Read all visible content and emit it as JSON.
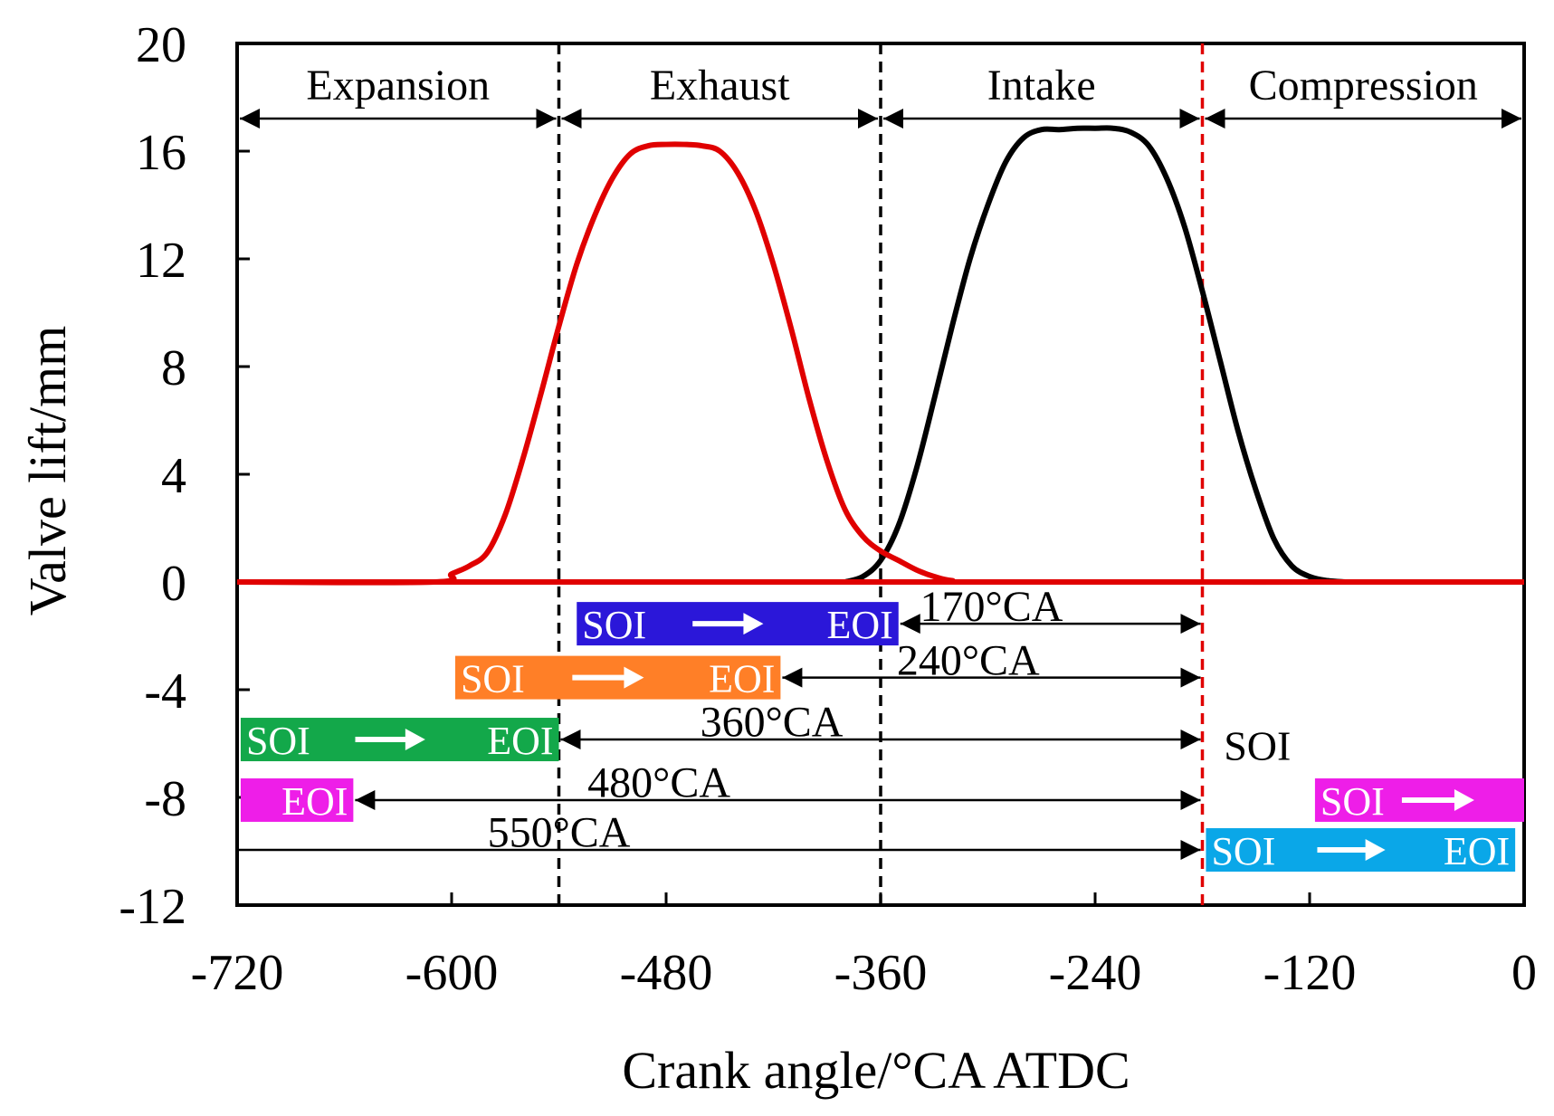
{
  "chart_data": {
    "type": "line",
    "xlabel": "Crank angle/°CA ATDC",
    "ylabel": "Valve lift/mm",
    "xlim": [
      -720,
      0
    ],
    "ylim": [
      -12,
      20
    ],
    "xticks": [
      -720,
      -600,
      -480,
      -360,
      -240,
      -120,
      0
    ],
    "yticks": [
      20,
      16,
      12,
      8,
      4,
      0,
      -4,
      -8,
      -12
    ],
    "series": [
      {
        "name": "Exhaust valve lift",
        "color": "#e00000",
        "x": [
          -720,
          -610,
          -600,
          -590,
          -580,
          -570,
          -560,
          -550,
          -540,
          -530,
          -520,
          -510,
          -500,
          -490,
          -480,
          -470,
          -460,
          -450,
          -440,
          -430,
          -420,
          -410,
          -400,
          -390,
          -380,
          -370,
          -360,
          -350,
          -340,
          -330,
          -320,
          -300,
          0
        ],
        "y": [
          0,
          0,
          0.3,
          0.6,
          1.1,
          2.5,
          4.6,
          7.0,
          9.5,
          11.8,
          13.6,
          15.0,
          15.9,
          16.2,
          16.25,
          16.25,
          16.2,
          16.0,
          15.2,
          13.8,
          11.8,
          9.4,
          6.8,
          4.5,
          2.7,
          1.7,
          1.15,
          0.8,
          0.45,
          0.2,
          0.05,
          0,
          0
        ]
      },
      {
        "name": "Intake valve lift",
        "color": "#000000",
        "x": [
          -380,
          -370,
          -360,
          -350,
          -340,
          -330,
          -320,
          -310,
          -300,
          -290,
          -280,
          -270,
          -260,
          -250,
          -240,
          -230,
          -220,
          -210,
          -200,
          -190,
          -180,
          -170,
          -160,
          -150,
          -140,
          -130,
          -120,
          -110,
          -100
        ],
        "y": [
          0,
          0.2,
          0.8,
          2.1,
          4.2,
          6.8,
          9.5,
          12.0,
          14.0,
          15.6,
          16.5,
          16.8,
          16.8,
          16.85,
          16.85,
          16.85,
          16.7,
          16.2,
          15.0,
          13.2,
          10.8,
          8.2,
          5.6,
          3.4,
          1.6,
          0.6,
          0.2,
          0.05,
          0
        ]
      }
    ],
    "phase_dividers": [
      {
        "x": -540,
        "color": "#000000"
      },
      {
        "x": -360,
        "color": "#000000"
      },
      {
        "x": -180,
        "color": "#e00000"
      }
    ],
    "phases": [
      {
        "label": "Expansion",
        "from": -720,
        "to": -540
      },
      {
        "label": "Exhaust",
        "from": -540,
        "to": -360
      },
      {
        "label": "Intake",
        "from": -360,
        "to": -180
      },
      {
        "label": "Compression",
        "from": -180,
        "to": 0
      }
    ],
    "injection_windows": [
      {
        "color": "#2b17d9",
        "from": -530,
        "to": -350,
        "y": -1.55,
        "soi": "SOI",
        "arrow": "→",
        "eoi": "EOI",
        "interval_from": -350,
        "interval_to": -180,
        "interval_label": "170°CA",
        "label_x": -298,
        "label_y": -0.9
      },
      {
        "color": "#ff7f27",
        "from": -598,
        "to": -416,
        "y": -3.55,
        "soi": "SOI",
        "arrow": "→",
        "eoi": "EOI",
        "interval_from": -416,
        "interval_to": -180,
        "interval_label": "240°CA",
        "label_x": -311,
        "label_y": -2.9
      },
      {
        "color": "#13a84a",
        "from": -718,
        "to": -540,
        "y": -5.85,
        "soi": "SOI",
        "arrow": "→",
        "eoi": "EOI",
        "interval_from": -540,
        "interval_to": -180,
        "interval_label": "360°CA",
        "label_x": -421,
        "label_y": -5.2
      },
      {
        "color": "#ee1ee8",
        "from": -718,
        "to": -655,
        "y": -8.1,
        "soi": "",
        "arrow": "",
        "eoi": "EOI",
        "interval_from": -655,
        "interval_to": -180,
        "interval_label": "480°CA",
        "label_x": -484,
        "label_y": -7.45
      },
      {
        "color": "#ee1ee8",
        "from": -117,
        "to": 0,
        "y": -8.1,
        "soi": "SOI",
        "arrow": "→",
        "eoi": "",
        "interval_from": null,
        "interval_to": null,
        "interval_label": "",
        "label_x": 0,
        "label_y": 0
      },
      {
        "color": "#0aa7e8",
        "from": -178,
        "to": -5,
        "y": -9.95,
        "soi": "SOI",
        "arrow": "→",
        "eoi": "EOI",
        "interval_from": -720,
        "interval_to": -180,
        "interval_label": "550°CA",
        "label_x": -540,
        "label_y": -9.3
      }
    ],
    "annotations": [
      {
        "text": "SOI",
        "x": -168,
        "y": -6.0
      }
    ]
  }
}
